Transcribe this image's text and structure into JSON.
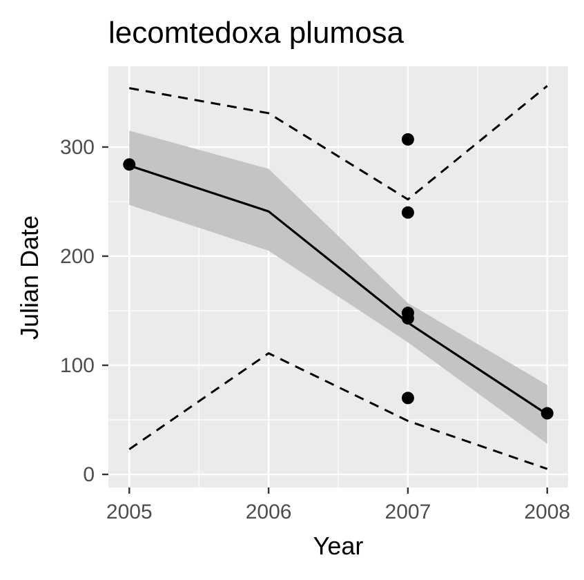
{
  "chart_data": {
    "type": "line",
    "title": "lecomtedoxa plumosa",
    "xlabel": "Year",
    "ylabel": "Julian Date",
    "x_ticks": [
      "2005",
      "2006",
      "2007",
      "2008"
    ],
    "y_ticks": [
      "0",
      "100",
      "200",
      "300"
    ],
    "xlim": [
      2004.85,
      2008.15
    ],
    "ylim": [
      -12,
      374
    ],
    "grid": true,
    "legend": "none",
    "colors": {
      "panel": "#ebebeb",
      "grid": "#ffffff",
      "ribbon": "#c4c4c4",
      "line": "#000000",
      "points": "#000000"
    },
    "series": [
      {
        "kind": "fit",
        "x": [
          2005,
          2006,
          2007,
          2008
        ],
        "y": [
          283,
          241,
          139,
          55
        ]
      },
      {
        "kind": "confidence-band",
        "x": [
          2005,
          2006,
          2007,
          2008
        ],
        "lower": [
          247,
          205,
          121,
          28
        ],
        "upper": [
          315,
          280,
          157,
          82
        ]
      },
      {
        "kind": "upper-bound",
        "line_style": "dashed",
        "x": [
          2005,
          2006,
          2007,
          2008
        ],
        "y": [
          354,
          331,
          252,
          356
        ]
      },
      {
        "kind": "lower-bound",
        "line_style": "dashed",
        "x": [
          2005,
          2006,
          2007,
          2008
        ],
        "y": [
          23,
          111,
          49,
          5
        ]
      },
      {
        "kind": "observations",
        "type": "scatter",
        "x": [
          2005,
          2007,
          2007,
          2007,
          2007,
          2007,
          2008
        ],
        "y": [
          284,
          307,
          240,
          148,
          143,
          70,
          56
        ]
      }
    ]
  }
}
